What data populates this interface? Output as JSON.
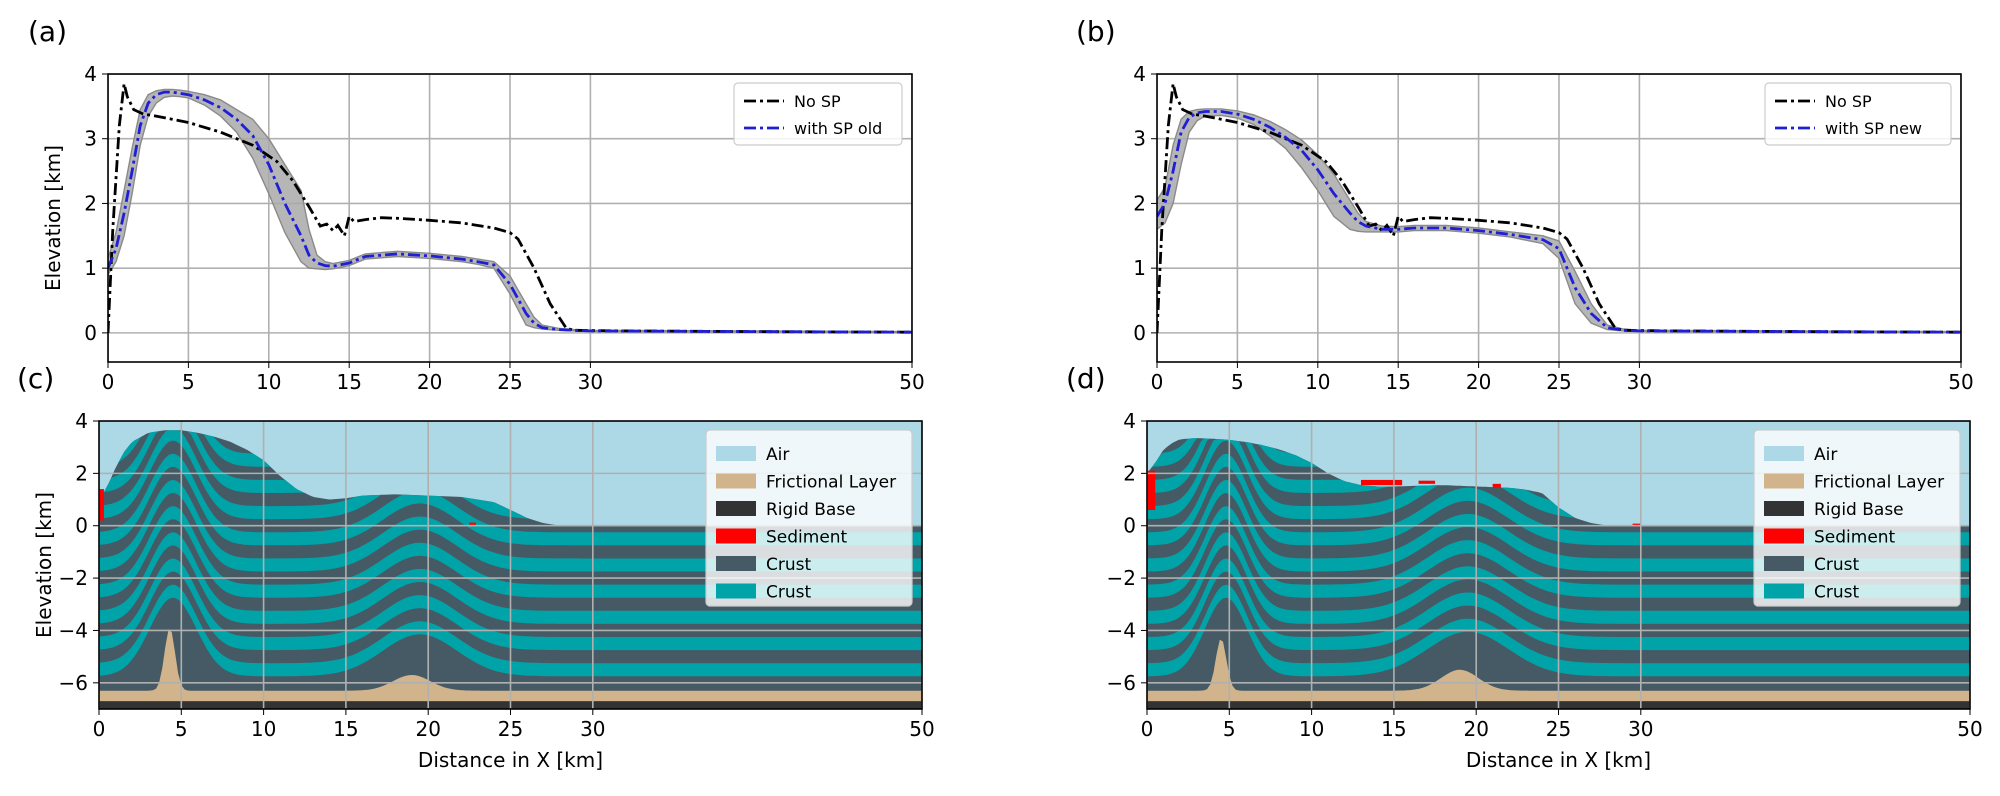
{
  "panels": [
    {
      "id": "a",
      "label": "(a)"
    },
    {
      "id": "b",
      "label": "(b)"
    },
    {
      "id": "c",
      "label": "(c)"
    },
    {
      "id": "d",
      "label": "(d)"
    }
  ],
  "colors": {
    "no_sp": "#000000",
    "with_sp": "#1f1fd6",
    "band": "#a9a9a9",
    "air": "#add8e6",
    "frictional": "#d2b48c",
    "rigid": "#333333",
    "sediment": "#ff0000",
    "crust_dark": "#455a64",
    "crust_teal": "#00a3a8",
    "grid": "#b0b0b0"
  },
  "chart_data": [
    {
      "panel": "(a)",
      "type": "line",
      "xlabel": "",
      "ylabel": "Elevation [km]",
      "xlim": [
        0,
        50
      ],
      "ylim": [
        -0.45,
        4
      ],
      "xticks": [
        0,
        5,
        10,
        15,
        20,
        25,
        30,
        50
      ],
      "yticks": [
        0,
        1,
        2,
        3,
        4
      ],
      "grid": true,
      "legend_position": "upper-right",
      "series": [
        {
          "name": "No SP",
          "style": "dashdot",
          "color": "#000000",
          "x": [
            0,
            0.3,
            0.7,
            1.0,
            1.2,
            1.6,
            2.2,
            3,
            5,
            7,
            9,
            10.5,
            11.5,
            12.5,
            13.2,
            13.6,
            14.0,
            14.3,
            14.7,
            15.0,
            15.3,
            16,
            17,
            18,
            20,
            22,
            24,
            25,
            25.5,
            26.5,
            27.5,
            28.5,
            29,
            32,
            40,
            50
          ],
          "y": [
            0,
            1.6,
            3.2,
            3.85,
            3.65,
            3.45,
            3.38,
            3.35,
            3.25,
            3.1,
            2.9,
            2.65,
            2.35,
            1.95,
            1.65,
            1.68,
            1.58,
            1.66,
            1.5,
            1.8,
            1.72,
            1.75,
            1.78,
            1.77,
            1.74,
            1.7,
            1.62,
            1.55,
            1.45,
            1.0,
            0.45,
            0.07,
            0.04,
            0.03,
            0.02,
            0.01
          ]
        },
        {
          "name": "with SP old",
          "style": "dashdot",
          "color": "#1f1fd6",
          "x": [
            0,
            0.5,
            1,
            1.5,
            2,
            2.5,
            3,
            3.5,
            4,
            4.5,
            5,
            6,
            7,
            8,
            9,
            10,
            11,
            12,
            12.5,
            13,
            13.5,
            14,
            15,
            16,
            18,
            20,
            22,
            23,
            24,
            25,
            26,
            26.5,
            27,
            28,
            29,
            30,
            40,
            50
          ],
          "y": [
            1.0,
            1.3,
            1.85,
            2.5,
            3.2,
            3.55,
            3.68,
            3.72,
            3.72,
            3.7,
            3.68,
            3.6,
            3.48,
            3.3,
            3.05,
            2.6,
            2.0,
            1.5,
            1.2,
            1.08,
            1.04,
            1.03,
            1.08,
            1.18,
            1.22,
            1.19,
            1.14,
            1.1,
            1.05,
            0.75,
            0.3,
            0.15,
            0.08,
            0.05,
            0.04,
            0.03,
            0.02,
            0.01
          ]
        },
        {
          "name": "spread",
          "role": "band",
          "color": "#a9a9a9",
          "x": [
            0,
            0.5,
            1,
            1.5,
            2,
            2.5,
            3,
            3.5,
            4,
            4.5,
            5,
            6,
            7,
            8,
            9,
            10,
            11,
            12,
            12.5,
            13,
            13.5,
            14,
            15,
            16,
            18,
            20,
            22,
            23,
            24,
            25,
            26,
            26.5,
            27,
            28,
            29,
            30,
            40,
            50
          ],
          "lower": [
            0.9,
            1.1,
            1.5,
            2.15,
            2.9,
            3.35,
            3.55,
            3.64,
            3.66,
            3.65,
            3.63,
            3.52,
            3.35,
            3.1,
            2.7,
            2.15,
            1.55,
            1.1,
            1.0,
            0.99,
            0.98,
            0.99,
            1.04,
            1.14,
            1.18,
            1.15,
            1.1,
            1.06,
            1.0,
            0.6,
            0.12,
            0.08,
            0.06,
            0.04,
            0.03,
            0.02,
            0.015,
            0.005
          ],
          "upper": [
            1.15,
            1.55,
            2.2,
            2.85,
            3.45,
            3.68,
            3.74,
            3.76,
            3.76,
            3.75,
            3.73,
            3.68,
            3.6,
            3.45,
            3.3,
            3.0,
            2.6,
            2.2,
            1.6,
            1.2,
            1.1,
            1.07,
            1.12,
            1.22,
            1.26,
            1.23,
            1.18,
            1.14,
            1.1,
            0.88,
            0.45,
            0.24,
            0.12,
            0.07,
            0.05,
            0.04,
            0.03,
            0.02
          ]
        }
      ]
    },
    {
      "panel": "(b)",
      "type": "line",
      "xlabel": "",
      "ylabel": "",
      "xlim": [
        0,
        50
      ],
      "ylim": [
        -0.45,
        4
      ],
      "xticks": [
        0,
        5,
        10,
        15,
        20,
        25,
        30,
        50
      ],
      "yticks": [
        0,
        1,
        2,
        3,
        4
      ],
      "grid": true,
      "legend_position": "upper-right",
      "series": [
        {
          "name": "No SP",
          "style": "dashdot",
          "color": "#000000",
          "x": [
            0,
            0.3,
            0.7,
            1.0,
            1.2,
            1.6,
            2.2,
            3,
            5,
            7,
            9,
            10.5,
            11.5,
            12.5,
            13.2,
            13.6,
            14.0,
            14.3,
            14.7,
            15.0,
            15.3,
            16,
            17,
            18,
            20,
            22,
            24,
            25,
            25.5,
            26.5,
            27.5,
            28.5,
            29,
            32,
            40,
            50
          ],
          "y": [
            0,
            1.6,
            3.2,
            3.85,
            3.65,
            3.45,
            3.38,
            3.35,
            3.25,
            3.1,
            2.9,
            2.65,
            2.35,
            1.95,
            1.65,
            1.68,
            1.58,
            1.66,
            1.5,
            1.8,
            1.72,
            1.75,
            1.78,
            1.77,
            1.74,
            1.7,
            1.62,
            1.55,
            1.45,
            1.0,
            0.45,
            0.07,
            0.04,
            0.03,
            0.02,
            0.01
          ]
        },
        {
          "name": "with SP new",
          "style": "dashdot",
          "color": "#1f1fd6",
          "x": [
            0,
            0.5,
            1,
            1.5,
            2,
            2.5,
            3,
            4,
            5,
            6,
            7,
            8,
            9,
            10,
            11,
            12,
            12.5,
            13,
            14,
            15,
            16,
            18,
            20,
            22,
            24,
            25,
            26,
            27,
            28,
            29,
            30,
            40,
            50
          ],
          "y": [
            1.8,
            2.0,
            2.5,
            3.1,
            3.33,
            3.4,
            3.42,
            3.42,
            3.38,
            3.3,
            3.18,
            3.02,
            2.82,
            2.52,
            2.15,
            1.85,
            1.72,
            1.65,
            1.6,
            1.6,
            1.62,
            1.62,
            1.58,
            1.52,
            1.44,
            1.3,
            0.7,
            0.3,
            0.08,
            0.04,
            0.03,
            0.02,
            0.01
          ]
        },
        {
          "name": "spread",
          "role": "band",
          "color": "#a9a9a9",
          "x": [
            0,
            0.5,
            1,
            1.5,
            2,
            2.5,
            3,
            4,
            5,
            6,
            7,
            8,
            9,
            10,
            11,
            12,
            12.5,
            13,
            14,
            15,
            16,
            18,
            20,
            22,
            24,
            25,
            26,
            27,
            28,
            29,
            30,
            40,
            50
          ],
          "lower": [
            1.6,
            1.7,
            2.0,
            2.6,
            3.1,
            3.28,
            3.35,
            3.36,
            3.32,
            3.22,
            3.05,
            2.85,
            2.55,
            2.2,
            1.8,
            1.6,
            1.57,
            1.56,
            1.56,
            1.56,
            1.58,
            1.58,
            1.54,
            1.48,
            1.38,
            1.15,
            0.45,
            0.15,
            0.05,
            0.03,
            0.02,
            0.015,
            0.005
          ],
          "upper": [
            2.05,
            2.25,
            2.9,
            3.3,
            3.42,
            3.45,
            3.46,
            3.46,
            3.43,
            3.37,
            3.27,
            3.14,
            2.98,
            2.75,
            2.45,
            2.05,
            1.85,
            1.72,
            1.65,
            1.64,
            1.66,
            1.66,
            1.62,
            1.56,
            1.5,
            1.42,
            0.95,
            0.45,
            0.12,
            0.06,
            0.04,
            0.03,
            0.02
          ]
        }
      ]
    },
    {
      "panel": "(c)",
      "type": "heatmap",
      "xlabel": "Distance in X [km]",
      "ylabel": "Elevation [km]",
      "xlim": [
        0,
        50
      ],
      "ylim": [
        -7,
        4
      ],
      "xticks": [
        0,
        5,
        10,
        15,
        20,
        25,
        30,
        50
      ],
      "yticks": [
        -6,
        -4,
        -2,
        0,
        2,
        4
      ],
      "grid": true,
      "legend_position": "upper-right",
      "legend": [
        {
          "name": "Air",
          "color": "#add8e6"
        },
        {
          "name": "Frictional Layer",
          "color": "#d2b48c"
        },
        {
          "name": "Rigid Base",
          "color": "#333333"
        },
        {
          "name": "Sediment",
          "color": "#ff0000"
        },
        {
          "name": "Crust",
          "color": "#455a64"
        },
        {
          "name": "Crust",
          "color": "#00a3a8"
        }
      ],
      "surface": {
        "x": [
          0,
          0.5,
          1,
          1.5,
          2,
          3,
          4,
          5,
          6,
          7,
          8,
          9,
          10,
          11,
          12,
          13,
          14,
          15,
          16,
          18,
          20,
          22,
          23,
          24,
          25,
          26,
          27,
          28,
          50
        ],
        "y": [
          1.0,
          1.5,
          2.2,
          2.8,
          3.2,
          3.55,
          3.65,
          3.65,
          3.55,
          3.4,
          3.2,
          2.9,
          2.5,
          1.9,
          1.4,
          1.1,
          1.0,
          1.05,
          1.15,
          1.2,
          1.15,
          1.1,
          1.0,
          0.9,
          0.6,
          0.3,
          0.1,
          0.0,
          0.0
        ]
      },
      "layer_base_levels": [
        -5.75,
        -4.75,
        -3.75,
        -2.75,
        -1.75,
        -0.75,
        0.25,
        1.25,
        2.25,
        3.25
      ],
      "layer_thickness": 0.5,
      "folds": [
        {
          "center": 4.5,
          "width": 2.0,
          "amplitude": 3.0
        },
        {
          "center": 19.5,
          "width": 3.2,
          "amplitude": 1.6
        }
      ],
      "frictional_level": -6.3,
      "rigid_level": -6.7,
      "salt_domes": [
        {
          "center": 4.3,
          "top": -3.9
        },
        {
          "center": 19.0,
          "top": -5.7
        }
      ],
      "sediment_patches": [
        {
          "x0": 0,
          "x1": 0.3,
          "y0": 0.2,
          "y1": 1.4
        },
        {
          "x0": 22.5,
          "x1": 22.9,
          "y0": 0.05,
          "y1": 0.12
        }
      ]
    },
    {
      "panel": "(d)",
      "type": "heatmap",
      "xlabel": "Distance in X [km]",
      "ylabel": "",
      "xlim": [
        0,
        50
      ],
      "ylim": [
        -7,
        4
      ],
      "xticks": [
        0,
        5,
        10,
        15,
        20,
        25,
        30,
        50
      ],
      "yticks": [
        -6,
        -4,
        -2,
        0,
        2,
        4
      ],
      "grid": true,
      "legend_position": "upper-right",
      "legend": [
        {
          "name": "Air",
          "color": "#add8e6"
        },
        {
          "name": "Frictional Layer",
          "color": "#d2b48c"
        },
        {
          "name": "Rigid Base",
          "color": "#333333"
        },
        {
          "name": "Sediment",
          "color": "#ff0000"
        },
        {
          "name": "Crust",
          "color": "#455a64"
        },
        {
          "name": "Crust",
          "color": "#00a3a8"
        }
      ],
      "surface": {
        "x": [
          0,
          0.5,
          1,
          1.5,
          2,
          3,
          4,
          5,
          6,
          7,
          8,
          9,
          10,
          11,
          12,
          13,
          14,
          15,
          16,
          18,
          20,
          22,
          23,
          24,
          25,
          26,
          27,
          28,
          50
        ],
        "y": [
          2.0,
          2.4,
          2.9,
          3.15,
          3.3,
          3.35,
          3.32,
          3.28,
          3.2,
          3.08,
          2.92,
          2.7,
          2.4,
          2.0,
          1.7,
          1.55,
          1.5,
          1.5,
          1.52,
          1.55,
          1.5,
          1.45,
          1.38,
          1.25,
          0.7,
          0.3,
          0.1,
          0.0,
          0.0
        ]
      },
      "layer_base_levels": [
        -5.75,
        -4.75,
        -3.75,
        -2.75,
        -1.75,
        -0.75,
        0.25,
        1.25,
        2.25,
        3.25
      ],
      "layer_thickness": 0.5,
      "folds": [
        {
          "center": 4.8,
          "width": 1.8,
          "amplitude": 3.0
        },
        {
          "center": 19.5,
          "width": 3.5,
          "amplitude": 1.7
        }
      ],
      "frictional_level": -6.3,
      "rigid_level": -6.7,
      "salt_domes": [
        {
          "center": 4.5,
          "top": -4.3
        },
        {
          "center": 19.0,
          "top": -5.5
        }
      ],
      "sediment_patches": [
        {
          "x0": 0,
          "x1": 0.5,
          "y0": 0.6,
          "y1": 2.1
        },
        {
          "x0": 13,
          "x1": 15.5,
          "y0": 1.55,
          "y1": 1.75
        },
        {
          "x0": 16.5,
          "x1": 17.5,
          "y0": 1.6,
          "y1": 1.72
        },
        {
          "x0": 21,
          "x1": 21.5,
          "y0": 1.45,
          "y1": 1.6
        },
        {
          "x0": 29.5,
          "x1": 30,
          "y0": 0.0,
          "y1": 0.08
        }
      ]
    }
  ]
}
